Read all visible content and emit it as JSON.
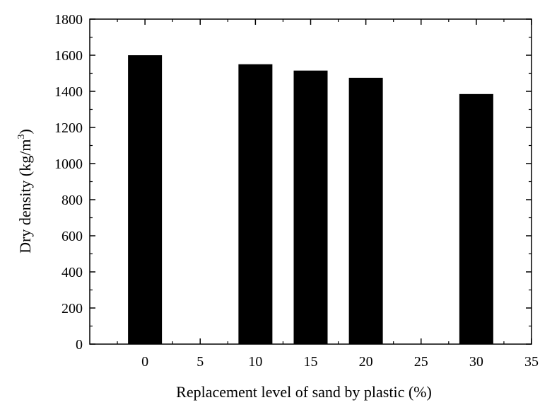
{
  "chart_data": {
    "type": "bar",
    "x": [
      0,
      10,
      15,
      20,
      30
    ],
    "values": [
      1600,
      1550,
      1515,
      1475,
      1385
    ],
    "xlabel": "Replacement level of sand by plastic (%)",
    "ylabel": "Dry density (kg/m",
    "ylabel_superscript": "3",
    "ylabel_suffix": ")",
    "xlim": [
      -5,
      35
    ],
    "ylim": [
      0,
      1800
    ],
    "xticks": [
      0,
      5,
      10,
      15,
      20,
      25,
      30,
      35
    ],
    "yticks": [
      0,
      200,
      400,
      600,
      800,
      1000,
      1200,
      1400,
      1600,
      1800
    ],
    "bar_color": "#000000",
    "grid": false,
    "legend": "none"
  }
}
